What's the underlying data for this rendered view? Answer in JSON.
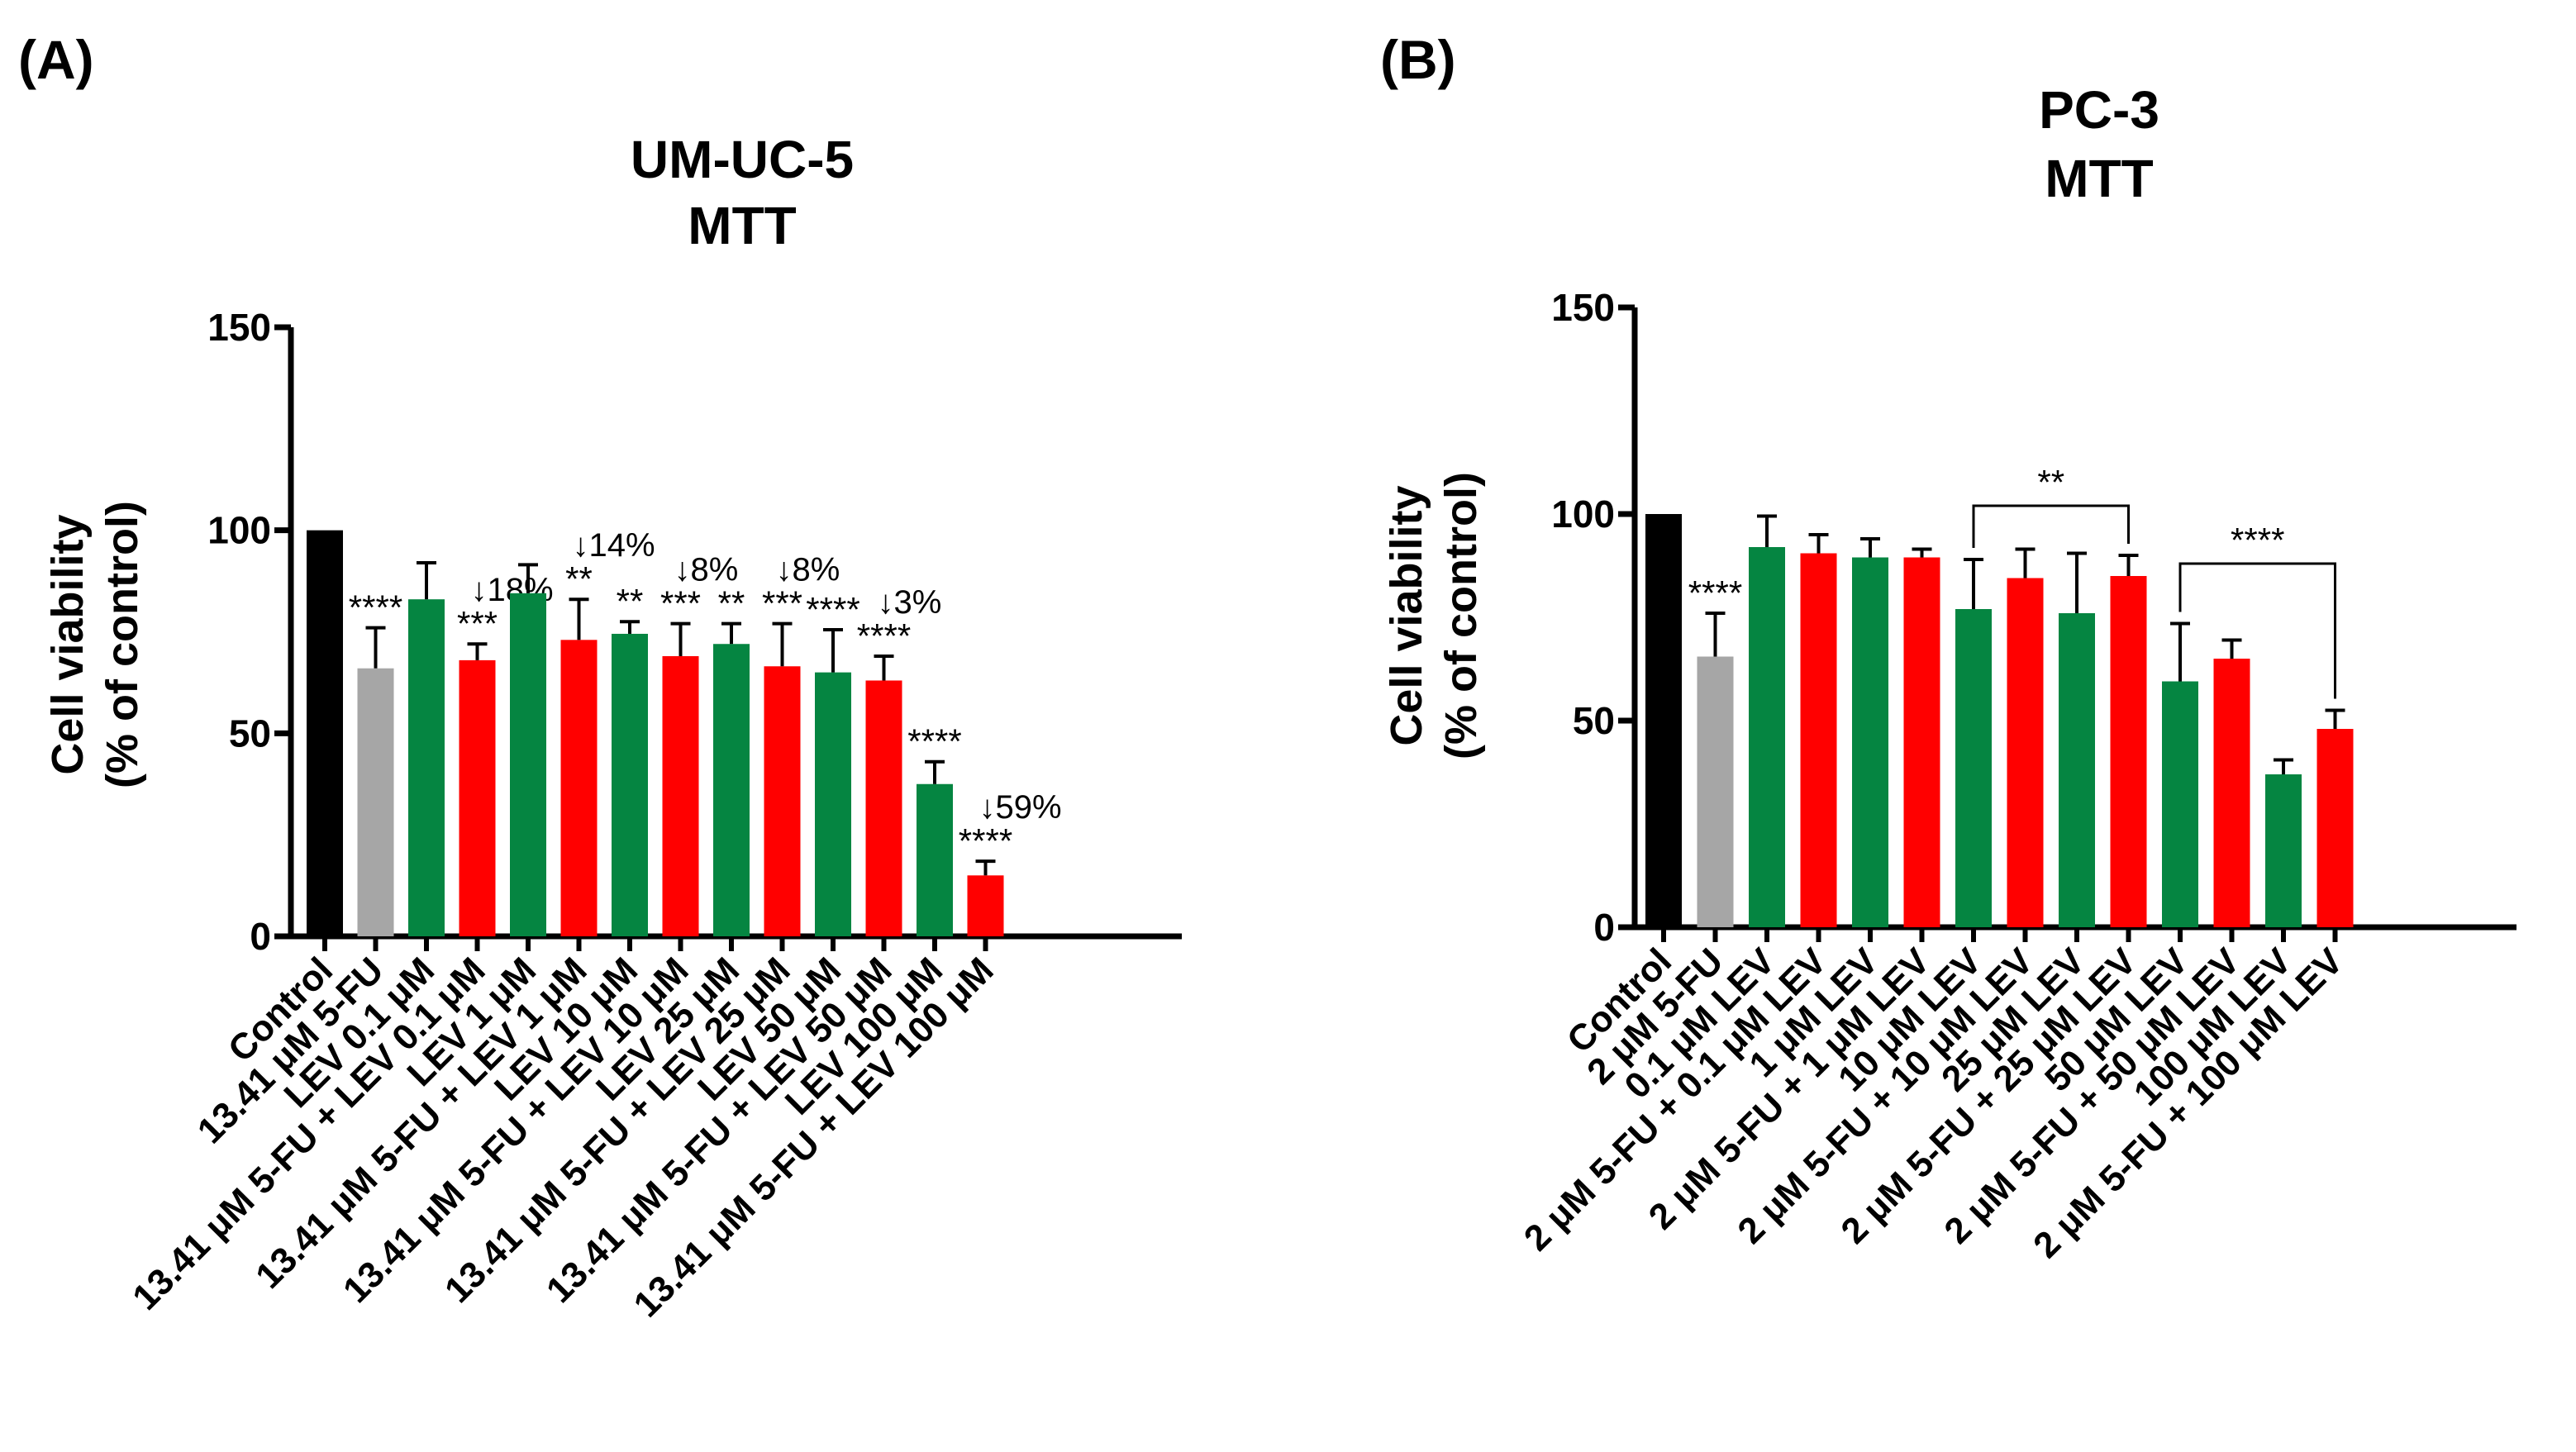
{
  "chart_data": [
    {
      "panel": "(A)",
      "type": "bar",
      "title": [
        "UM-UC-5",
        "MTT"
      ],
      "xlabel": "",
      "ylabel": [
        "Cell viability",
        "(% of control)"
      ],
      "ylim": [
        0,
        150
      ],
      "yticks": [
        0,
        50,
        100,
        150
      ],
      "categories": [
        "Control",
        "13.41 μM 5-FU",
        "LEV  0.1 μM",
        "13.41 μM 5-FU + LEV  0.1 μM",
        "LEV  1 μM",
        "13.41 μM 5-FU + LEV  1 μM",
        "LEV  10 μM",
        "13.41 μM 5-FU + LEV  10 μM",
        "LEV  25 μM",
        "13.41 μM 5-FU + LEV  25 μM",
        "LEV  50 μM",
        "13.41 μM 5-FU + LEV  50 μM",
        "LEV  100 μM",
        "13.41 μM 5-FU + LEV  100 μM"
      ],
      "values": [
        100,
        66,
        83,
        68,
        84.5,
        73,
        74.5,
        69,
        72,
        66.5,
        65,
        63,
        37.5,
        15
      ],
      "errors": [
        0,
        10,
        9,
        4,
        7,
        10,
        3,
        8,
        5,
        10.5,
        10.5,
        6,
        5.5,
        3.5
      ],
      "colors": [
        "#000000",
        "#a6a6a6",
        "#058541",
        "#ff0000",
        "#058541",
        "#ff0000",
        "#058541",
        "#ff0000",
        "#058541",
        "#ff0000",
        "#058541",
        "#ff0000",
        "#058541",
        "#ff0000"
      ],
      "significance": [
        "",
        "****",
        "",
        "***",
        "",
        "**",
        "**",
        "***",
        "**",
        "***",
        "****",
        "****",
        "****",
        "****"
      ],
      "reductions": [
        "",
        "",
        "",
        "↓18%",
        "",
        "↓14%",
        "",
        "↓8%",
        "",
        "↓8%",
        "",
        "↓3%",
        "",
        "↓59%"
      ],
      "brackets": []
    },
    {
      "panel": "(B)",
      "type": "bar",
      "title": [
        "PC-3",
        "MTT"
      ],
      "xlabel": "",
      "ylabel": [
        "Cell viability",
        "(% of control)"
      ],
      "ylim": [
        0,
        150
      ],
      "yticks": [
        0,
        50,
        100,
        150
      ],
      "categories": [
        "Control",
        "2 μM 5-FU",
        "0.1 μM LEV",
        "2 μM 5-FU + 0.1 μM LEV",
        "1 μM LEV",
        "2 μM 5-FU + 1 μM LEV",
        "10 μM LEV",
        "2 μM 5-FU + 10 μM LEV",
        "25 μM LEV",
        "2 μM 5-FU + 25 μM LEV",
        "50 μM LEV",
        "2 μM 5-FU + 50 μM LEV",
        "100 μM LEV",
        "2 μM 5-FU + 100 μM LEV"
      ],
      "values": [
        100,
        65.5,
        92,
        90.5,
        89.5,
        89.5,
        77,
        84.5,
        76,
        85,
        59.5,
        65,
        37,
        48
      ],
      "errors": [
        0,
        10.5,
        7.5,
        4.5,
        4.5,
        2,
        12,
        7,
        14.5,
        5,
        14,
        4.5,
        3.5,
        4.5
      ],
      "colors": [
        "#000000",
        "#a6a6a6",
        "#058541",
        "#ff0000",
        "#058541",
        "#ff0000",
        "#058541",
        "#ff0000",
        "#058541",
        "#ff0000",
        "#058541",
        "#ff0000",
        "#058541",
        "#ff0000"
      ],
      "significance": [
        "",
        "****",
        "",
        "",
        "",
        "",
        "",
        "",
        "",
        "",
        "",
        "",
        "",
        ""
      ],
      "reductions": [
        "",
        "",
        "",
        "",
        "",
        "",
        "",
        "",
        "",
        "",
        "",
        "",
        "",
        ""
      ],
      "brackets": [
        {
          "from": 6,
          "to": 9,
          "label": "**",
          "level": 102
        },
        {
          "from": 10,
          "to": 13,
          "label": "****",
          "level": 88
        }
      ]
    }
  ]
}
